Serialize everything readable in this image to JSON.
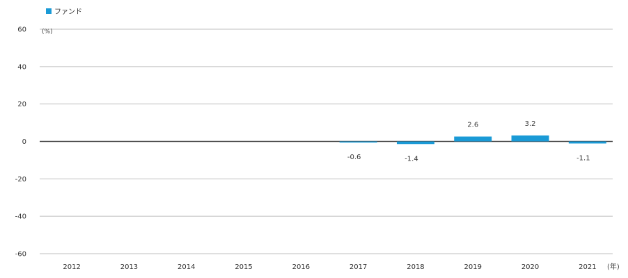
{
  "chart_data": {
    "type": "bar",
    "title": "",
    "legend": {
      "position": "top-left",
      "entries": [
        "ファンド"
      ]
    },
    "ylabel_unit": "(%)",
    "xlabel_unit": "(年)",
    "ylim": [
      -60,
      60
    ],
    "yticks": [
      60,
      40,
      20,
      0,
      -20,
      -40,
      -60
    ],
    "ytick_labels": [
      "60",
      "40",
      "20",
      "0",
      "-20",
      "-40",
      "-60"
    ],
    "grid": true,
    "categories": [
      "2012",
      "2013",
      "2014",
      "2015",
      "2016",
      "2017",
      "2018",
      "2019",
      "2020",
      "2021"
    ],
    "series": [
      {
        "name": "ファンド",
        "color": "#1a9ad6",
        "values": [
          null,
          null,
          null,
          null,
          null,
          -0.6,
          -1.4,
          2.6,
          3.2,
          -1.1
        ],
        "labels": [
          "",
          "",
          "",
          "",
          "",
          "-0.6",
          "-1.4",
          "2.6",
          "3.2",
          "-1.1"
        ]
      }
    ]
  }
}
